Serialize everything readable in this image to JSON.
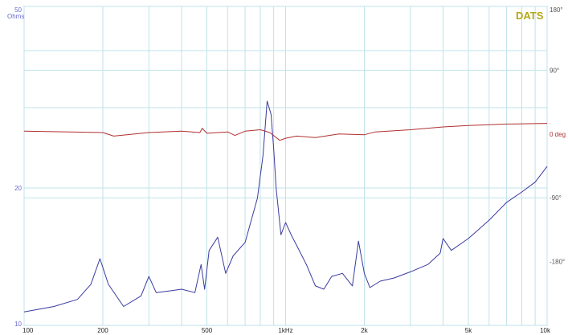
{
  "chart_data": {
    "type": "line",
    "title": "",
    "brand": "DATS",
    "colors": {
      "impedance": "#3a3aa0",
      "phase": "#b03030",
      "grid": "#bfe3ea",
      "brand": "#b3a818"
    },
    "x_scale": "log",
    "xlim": [
      100,
      10000
    ],
    "x_ticks": [
      {
        "value": 100,
        "label": "100"
      },
      {
        "value": 200,
        "label": "200"
      },
      {
        "value": 500,
        "label": "500"
      },
      {
        "value": 1000,
        "label": "1kHz"
      },
      {
        "value": 2000,
        "label": "2k"
      },
      {
        "value": 5000,
        "label": "5k"
      },
      {
        "value": 10000,
        "label": "10k"
      }
    ],
    "left_axis": {
      "scale": "log",
      "range": [
        10,
        50
      ],
      "unit_label": "Ohms",
      "ticks": [
        {
          "value": 50,
          "label": "50"
        },
        {
          "value": 20,
          "label": "20"
        },
        {
          "value": 10,
          "label": "10"
        }
      ]
    },
    "right_axis": {
      "range": [
        -270,
        180
      ],
      "unit_label": "deg",
      "ticks": [
        {
          "value": 180,
          "label": "180°"
        },
        {
          "value": 90,
          "label": "90°"
        },
        {
          "value": 0,
          "label": "0 deg"
        },
        {
          "value": -90,
          "label": "-90°"
        },
        {
          "value": -180,
          "label": "-180°"
        }
      ]
    },
    "grid": true,
    "series": [
      {
        "key": "impedance",
        "axis": "left",
        "x": [
          100,
          130,
          160,
          180,
          195,
          210,
          240,
          280,
          300,
          320,
          360,
          400,
          450,
          475,
          490,
          510,
          550,
          590,
          630,
          700,
          780,
          820,
          850,
          880,
          900,
          920,
          960,
          1000,
          1050,
          1100,
          1200,
          1300,
          1400,
          1500,
          1650,
          1800,
          1900,
          2000,
          2100,
          2300,
          2600,
          3000,
          3500,
          3900,
          4000,
          4300,
          5000,
          6000,
          7000,
          8000,
          9000,
          10000
        ],
        "y": [
          10.7,
          11.0,
          11.4,
          12.3,
          14.0,
          12.3,
          11.0,
          11.6,
          12.8,
          11.8,
          11.9,
          12.0,
          11.8,
          13.6,
          12.0,
          14.6,
          15.6,
          13.0,
          14.2,
          15.2,
          19.0,
          23.6,
          31.0,
          29.0,
          24.5,
          20.0,
          15.8,
          16.8,
          15.8,
          15.0,
          13.6,
          12.2,
          12.0,
          12.8,
          13.0,
          12.2,
          15.3,
          13.0,
          12.1,
          12.5,
          12.7,
          13.1,
          13.6,
          14.4,
          15.5,
          14.6,
          15.5,
          17.0,
          18.6,
          19.6,
          20.6,
          22.3
        ]
      },
      {
        "key": "phase",
        "axis": "right",
        "x": [
          100,
          150,
          200,
          220,
          300,
          400,
          470,
          480,
          500,
          600,
          640,
          700,
          800,
          870,
          950,
          1000,
          1100,
          1300,
          1600,
          2000,
          2200,
          3000,
          4000,
          5000,
          7000,
          10000
        ],
        "y": [
          4,
          3,
          2,
          -3,
          2,
          4,
          2,
          8,
          1,
          3,
          -2,
          4,
          6,
          2,
          -9,
          -6,
          -3,
          -5,
          0,
          -1,
          3,
          6,
          10,
          12,
          14,
          15
        ]
      }
    ]
  }
}
